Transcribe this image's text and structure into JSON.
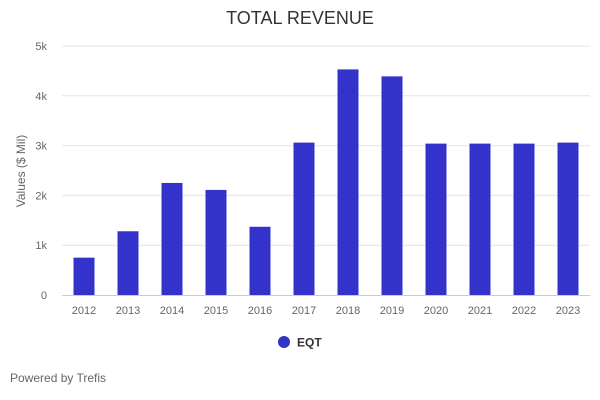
{
  "chart_data": {
    "type": "bar",
    "title": "TOTAL REVENUE",
    "xlabel": "",
    "ylabel": "Values ($ Mil)",
    "categories": [
      "2012",
      "2013",
      "2014",
      "2015",
      "2016",
      "2017",
      "2018",
      "2019",
      "2020",
      "2021",
      "2022",
      "2023"
    ],
    "series": [
      {
        "name": "EQT",
        "values": [
          750,
          1280,
          2250,
          2110,
          1370,
          3060,
          4530,
          4390,
          3040,
          3040,
          3040,
          3060
        ]
      }
    ],
    "ylim": [
      0,
      5000
    ],
    "yticks": [
      {
        "value": 0,
        "label": "0"
      },
      {
        "value": 1000,
        "label": "1k"
      },
      {
        "value": 2000,
        "label": "2k"
      },
      {
        "value": 3000,
        "label": "3k"
      },
      {
        "value": 4000,
        "label": "4k"
      },
      {
        "value": 5000,
        "label": "5k"
      }
    ],
    "grid": true,
    "legend": "bottom-center",
    "colors": {
      "bar": "#3333cc",
      "grid": "#e6e6e6",
      "axis": "#cccccc"
    }
  },
  "credits": "Powered by Trefis"
}
